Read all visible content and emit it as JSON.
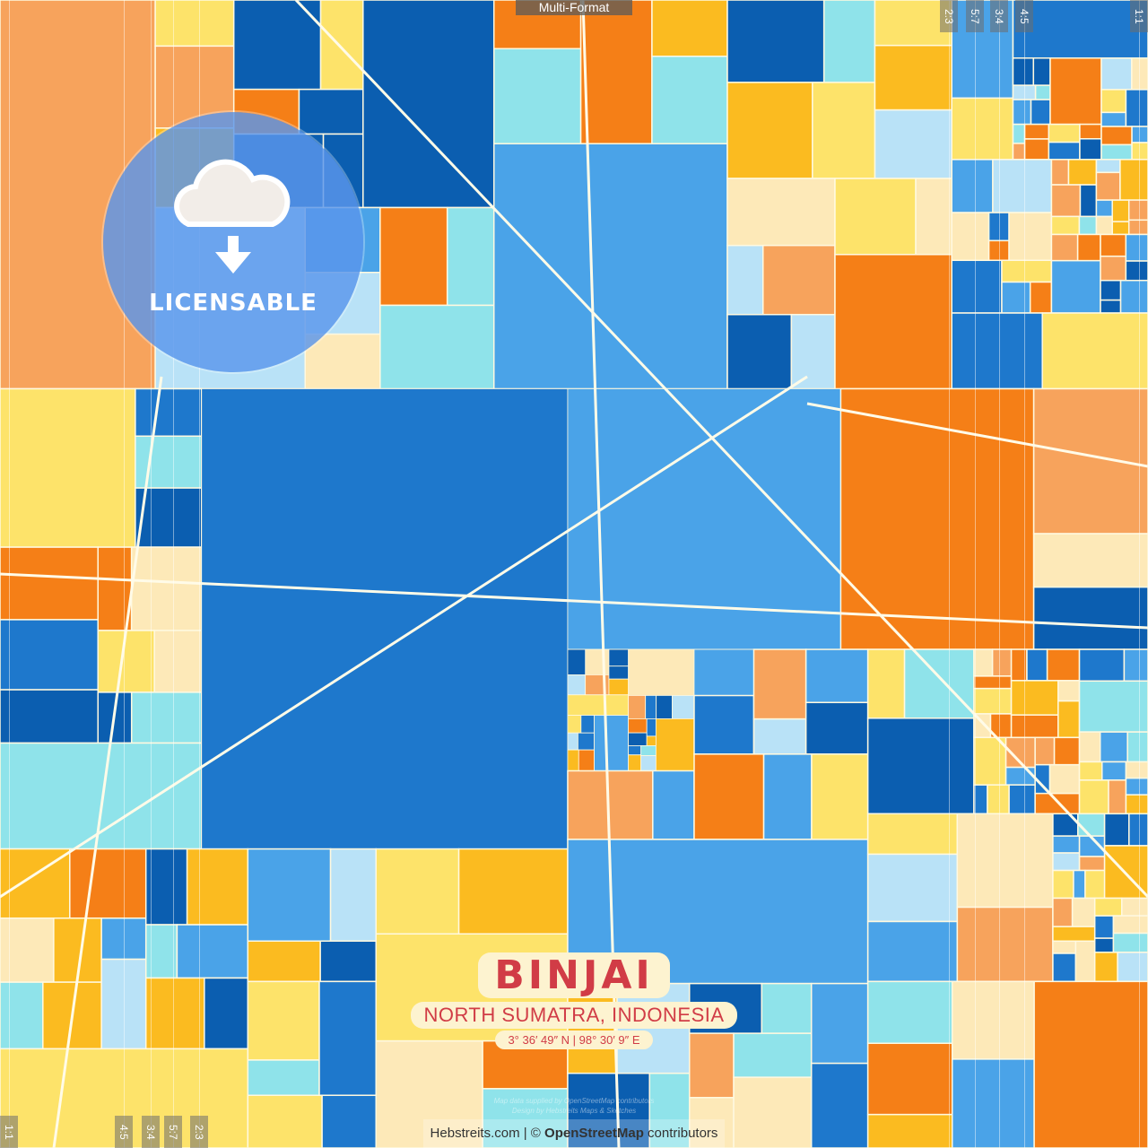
{
  "header": {
    "format_tab": "Multi-Format"
  },
  "aspect_ratios": {
    "top": [
      "2:3",
      "5:7",
      "3:4",
      "4:5",
      "1:1"
    ],
    "bottom": [
      "1:1",
      "4:5",
      "3:4",
      "5:7",
      "2:3"
    ]
  },
  "badge": {
    "label": "LICENSABLE",
    "icon": "cloud-download-icon"
  },
  "title": {
    "city": "BINJAI",
    "region": "NORTH SUMATRA, INDONESIA",
    "coordinates": "3° 36′ 49″ N | 98° 30′ 9″ E"
  },
  "footer": {
    "faint_line1": "Map data supplied by OpenStreetMap contributors",
    "faint_line2": "Design by Hebstreits Maps & Sketches",
    "site": "Hebstreits.com",
    "separator": " | © ",
    "osm": "OpenStreetMap",
    "contributors": " contributors"
  },
  "palette": [
    "#f7a35c",
    "#f57f17",
    "#fbbb20",
    "#fde36a",
    "#fde9b8",
    "#8fe3ea",
    "#b9e2f7",
    "#4aa3e8",
    "#1e78cc",
    "#0b5eb0"
  ]
}
